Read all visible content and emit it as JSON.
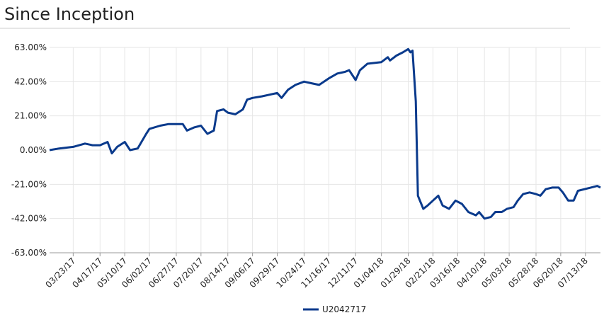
{
  "chart_data": {
    "type": "line",
    "title": "Since Inception",
    "x": [
      "2017-03-01",
      "2017-03-10",
      "2017-03-23",
      "2017-04-03",
      "2017-04-10",
      "2017-04-17",
      "2017-04-24",
      "2017-04-28",
      "2017-05-03",
      "2017-05-10",
      "2017-05-15",
      "2017-05-22",
      "2017-05-30",
      "2017-06-02",
      "2017-06-12",
      "2017-06-20",
      "2017-06-27",
      "2017-07-03",
      "2017-07-07",
      "2017-07-14",
      "2017-07-20",
      "2017-07-26",
      "2017-08-01",
      "2017-08-04",
      "2017-08-10",
      "2017-08-14",
      "2017-08-21",
      "2017-08-28",
      "2017-09-01",
      "2017-09-06",
      "2017-09-15",
      "2017-09-22",
      "2017-09-29",
      "2017-10-03",
      "2017-10-09",
      "2017-10-16",
      "2017-10-24",
      "2017-10-31",
      "2017-11-07",
      "2017-11-16",
      "2017-11-24",
      "2017-12-01",
      "2017-12-05",
      "2017-12-11",
      "2017-12-15",
      "2017-12-22",
      "2018-01-04",
      "2018-01-10",
      "2018-01-12",
      "2018-01-18",
      "2018-01-24",
      "2018-01-29",
      "2018-01-31",
      "2018-02-02",
      "2018-02-05",
      "2018-02-07",
      "2018-02-12",
      "2018-02-16",
      "2018-02-21",
      "2018-02-26",
      "2018-03-02",
      "2018-03-08",
      "2018-03-14",
      "2018-03-20",
      "2018-03-26",
      "2018-04-02",
      "2018-04-05",
      "2018-04-10",
      "2018-04-16",
      "2018-04-20",
      "2018-04-26",
      "2018-05-01",
      "2018-05-07",
      "2018-05-11",
      "2018-05-16",
      "2018-05-22",
      "2018-05-28",
      "2018-06-01",
      "2018-06-06",
      "2018-06-12",
      "2018-06-18",
      "2018-06-22",
      "2018-06-27",
      "2018-07-02",
      "2018-07-06",
      "2018-07-12",
      "2018-07-18",
      "2018-07-24",
      "2018-07-27"
    ],
    "series": [
      {
        "name": "U2042717",
        "color": "#0a3a8c",
        "values": [
          0,
          1,
          2,
          4,
          3,
          3,
          5,
          -2,
          2,
          5,
          0,
          1,
          10,
          13,
          15,
          16,
          16,
          16,
          12,
          14,
          15,
          10,
          12,
          24,
          25,
          23,
          22,
          25,
          31,
          32,
          33,
          34,
          35,
          32,
          37,
          40,
          42,
          41,
          40,
          44,
          47,
          48,
          49,
          43,
          49,
          53,
          54,
          57,
          55,
          58,
          60,
          62,
          60,
          61,
          30,
          -28,
          -36,
          -34,
          -31,
          -28,
          -34,
          -36,
          -31,
          -33,
          -38,
          -40,
          -38,
          -42,
          -41,
          -38,
          -38,
          -36,
          -35,
          -31,
          -27,
          -26,
          -27,
          -28,
          -24,
          -23,
          -23,
          -26,
          -31,
          -31,
          -25,
          -24,
          -23,
          -22,
          -23
        ]
      }
    ],
    "xlim": [
      "2017-03-01",
      "2018-07-27"
    ],
    "xticks": [
      {
        "value": "2017-03-23",
        "label": "03/23/17"
      },
      {
        "value": "2017-04-17",
        "label": "04/17/17"
      },
      {
        "value": "2017-05-10",
        "label": "05/10/17"
      },
      {
        "value": "2017-06-02",
        "label": "06/02/17"
      },
      {
        "value": "2017-06-27",
        "label": "06/27/17"
      },
      {
        "value": "2017-07-20",
        "label": "07/20/17"
      },
      {
        "value": "2017-08-14",
        "label": "08/14/17"
      },
      {
        "value": "2017-09-06",
        "label": "09/06/17"
      },
      {
        "value": "2017-09-29",
        "label": "09/29/17"
      },
      {
        "value": "2017-10-24",
        "label": "10/24/17"
      },
      {
        "value": "2017-11-16",
        "label": "11/16/17"
      },
      {
        "value": "2017-12-11",
        "label": "12/11/17"
      },
      {
        "value": "2018-01-04",
        "label": "01/04/18"
      },
      {
        "value": "2018-01-29",
        "label": "01/29/18"
      },
      {
        "value": "2018-02-21",
        "label": "02/21/18"
      },
      {
        "value": "2018-03-16",
        "label": "03/16/18"
      },
      {
        "value": "2018-04-10",
        "label": "04/10/18"
      },
      {
        "value": "2018-05-03",
        "label": "05/03/18"
      },
      {
        "value": "2018-05-28",
        "label": "05/28/18"
      },
      {
        "value": "2018-06-20",
        "label": "06/20/18"
      },
      {
        "value": "2018-07-13",
        "label": "07/13/18"
      }
    ],
    "ylim": [
      -63,
      63
    ],
    "yticks": [
      {
        "value": -63,
        "label": "-63.00%"
      },
      {
        "value": -42,
        "label": "-42.00%"
      },
      {
        "value": -21,
        "label": "-21.00%"
      },
      {
        "value": 0,
        "label": "0.00%"
      },
      {
        "value": 21,
        "label": "21.00%"
      },
      {
        "value": 42,
        "label": "42.00%"
      },
      {
        "value": 63,
        "label": "63.00%"
      }
    ],
    "grid": true,
    "legend": "bottom"
  }
}
